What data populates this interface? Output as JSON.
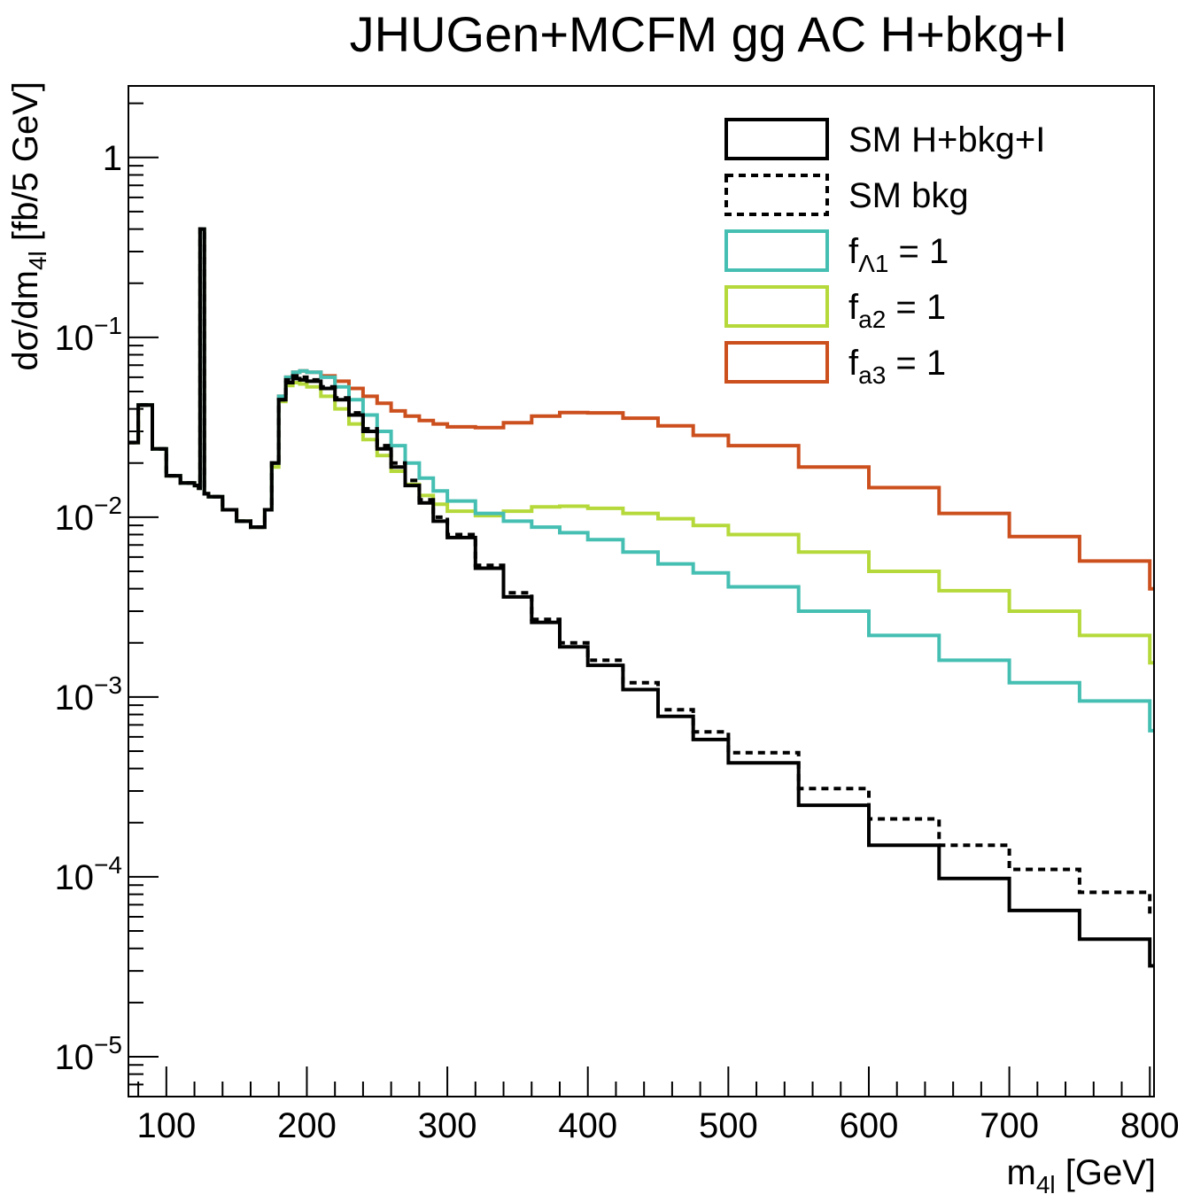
{
  "chart_data": {
    "type": "line",
    "title": "JHUGen+MCFM gg AC H+bkg+I",
    "xlabel": {
      "main": "m",
      "sub": "4l",
      "unit": " [GeV]"
    },
    "ylabel": {
      "pre": "dσ/dm",
      "sub": "4l",
      "post": " [fb/5 GeV]"
    },
    "xlim": [
      73,
      803
    ],
    "ylim": [
      6e-06,
      2.5
    ],
    "yscale": "log",
    "grid": false,
    "legend_position": "top-right",
    "xticks": [
      "100",
      "200",
      "300",
      "400",
      "500",
      "600",
      "700",
      "800"
    ],
    "xtick_values": [
      100,
      200,
      300,
      400,
      500,
      600,
      700,
      800
    ],
    "yticks": [
      {
        "base": "1",
        "exp": "",
        "value": 1
      },
      {
        "base": "10",
        "exp": "−1",
        "value": 0.1
      },
      {
        "base": "10",
        "exp": "−2",
        "value": 0.01
      },
      {
        "base": "10",
        "exp": "−3",
        "value": 0.001
      },
      {
        "base": "10",
        "exp": "−4",
        "value": 0.0001
      },
      {
        "base": "10",
        "exp": "−5",
        "value": 1e-05
      }
    ],
    "x": [
      73,
      80,
      90,
      100,
      110,
      120,
      123,
      124,
      126,
      127,
      130,
      140,
      150,
      160,
      170,
      175,
      180,
      185,
      190,
      195,
      200,
      210,
      220,
      230,
      240,
      250,
      260,
      270,
      280,
      290,
      300,
      320,
      340,
      360,
      380,
      400,
      425,
      450,
      475,
      500,
      550,
      600,
      650,
      700,
      750,
      800
    ],
    "series": [
      {
        "name": "SM H+bkg+I",
        "line_style": "solid",
        "color": "#000000",
        "values": [
          0.026,
          0.042,
          0.024,
          0.017,
          0.0155,
          0.015,
          0.0145,
          0.4,
          0.4,
          0.0135,
          0.013,
          0.011,
          0.0095,
          0.0088,
          0.011,
          0.02,
          0.045,
          0.056,
          0.059,
          0.058,
          0.057,
          0.052,
          0.045,
          0.037,
          0.03,
          0.024,
          0.019,
          0.015,
          0.012,
          0.0095,
          0.0077,
          0.0052,
          0.0036,
          0.0026,
          0.0019,
          0.0015,
          0.0011,
          0.00078,
          0.00058,
          0.00043,
          0.00025,
          0.00015,
          9.8e-05,
          6.5e-05,
          4.5e-05,
          3.2e-05
        ]
      },
      {
        "name": "SM bkg",
        "line_style": "dashed",
        "color": "#000000",
        "values": [
          0.026,
          0.042,
          0.024,
          0.017,
          0.0155,
          0.015,
          0.0145,
          0.4,
          0.4,
          0.0135,
          0.013,
          0.011,
          0.0095,
          0.0088,
          0.011,
          0.02,
          0.045,
          0.058,
          0.061,
          0.06,
          0.058,
          0.053,
          0.046,
          0.038,
          0.031,
          0.025,
          0.02,
          0.016,
          0.0125,
          0.01,
          0.008,
          0.0054,
          0.0038,
          0.0027,
          0.002,
          0.0016,
          0.0012,
          0.00085,
          0.00064,
          0.00049,
          0.00031,
          0.00021,
          0.00015,
          0.00011,
          8.2e-05,
          6.1e-05
        ]
      },
      {
        "name": "f",
        "name_sub": "Λ1",
        "name_post": " = 1",
        "line_style": "solid",
        "color": "#46BFB3",
        "values": [
          0.026,
          0.042,
          0.024,
          0.017,
          0.0155,
          0.015,
          0.0145,
          0.4,
          0.4,
          0.0135,
          0.013,
          0.011,
          0.0095,
          0.0088,
          0.011,
          0.02,
          0.047,
          0.06,
          0.064,
          0.065,
          0.064,
          0.06,
          0.053,
          0.045,
          0.037,
          0.03,
          0.025,
          0.02,
          0.0165,
          0.014,
          0.0123,
          0.0105,
          0.0095,
          0.0088,
          0.0082,
          0.0075,
          0.0064,
          0.0055,
          0.0049,
          0.0041,
          0.003,
          0.0022,
          0.0016,
          0.0012,
          0.00095,
          0.00065
        ]
      },
      {
        "name": "f",
        "name_sub": "a2",
        "name_post": " = 1",
        "line_style": "solid",
        "color": "#B5D93A",
        "values": [
          0.026,
          0.042,
          0.024,
          0.017,
          0.0155,
          0.015,
          0.0145,
          0.4,
          0.4,
          0.0135,
          0.013,
          0.011,
          0.0095,
          0.0088,
          0.011,
          0.019,
          0.044,
          0.054,
          0.056,
          0.055,
          0.053,
          0.047,
          0.04,
          0.033,
          0.027,
          0.022,
          0.018,
          0.0152,
          0.0132,
          0.0118,
          0.0108,
          0.0102,
          0.0108,
          0.0114,
          0.0115,
          0.0112,
          0.0105,
          0.0098,
          0.009,
          0.008,
          0.0064,
          0.005,
          0.0039,
          0.003,
          0.0022,
          0.00155
        ]
      },
      {
        "name": "f",
        "name_sub": "a3",
        "name_post": " = 1",
        "line_style": "solid",
        "color": "#CC4F1E",
        "values": [
          0.026,
          0.042,
          0.024,
          0.017,
          0.0155,
          0.015,
          0.0145,
          0.4,
          0.4,
          0.0135,
          0.013,
          0.011,
          0.0095,
          0.0088,
          0.011,
          0.02,
          0.047,
          0.06,
          0.064,
          0.065,
          0.064,
          0.061,
          0.057,
          0.052,
          0.047,
          0.043,
          0.039,
          0.0365,
          0.0345,
          0.033,
          0.0318,
          0.0315,
          0.0335,
          0.0365,
          0.0382,
          0.038,
          0.0355,
          0.0322,
          0.0285,
          0.025,
          0.019,
          0.0146,
          0.0105,
          0.0078,
          0.0057,
          0.004
        ]
      }
    ]
  }
}
